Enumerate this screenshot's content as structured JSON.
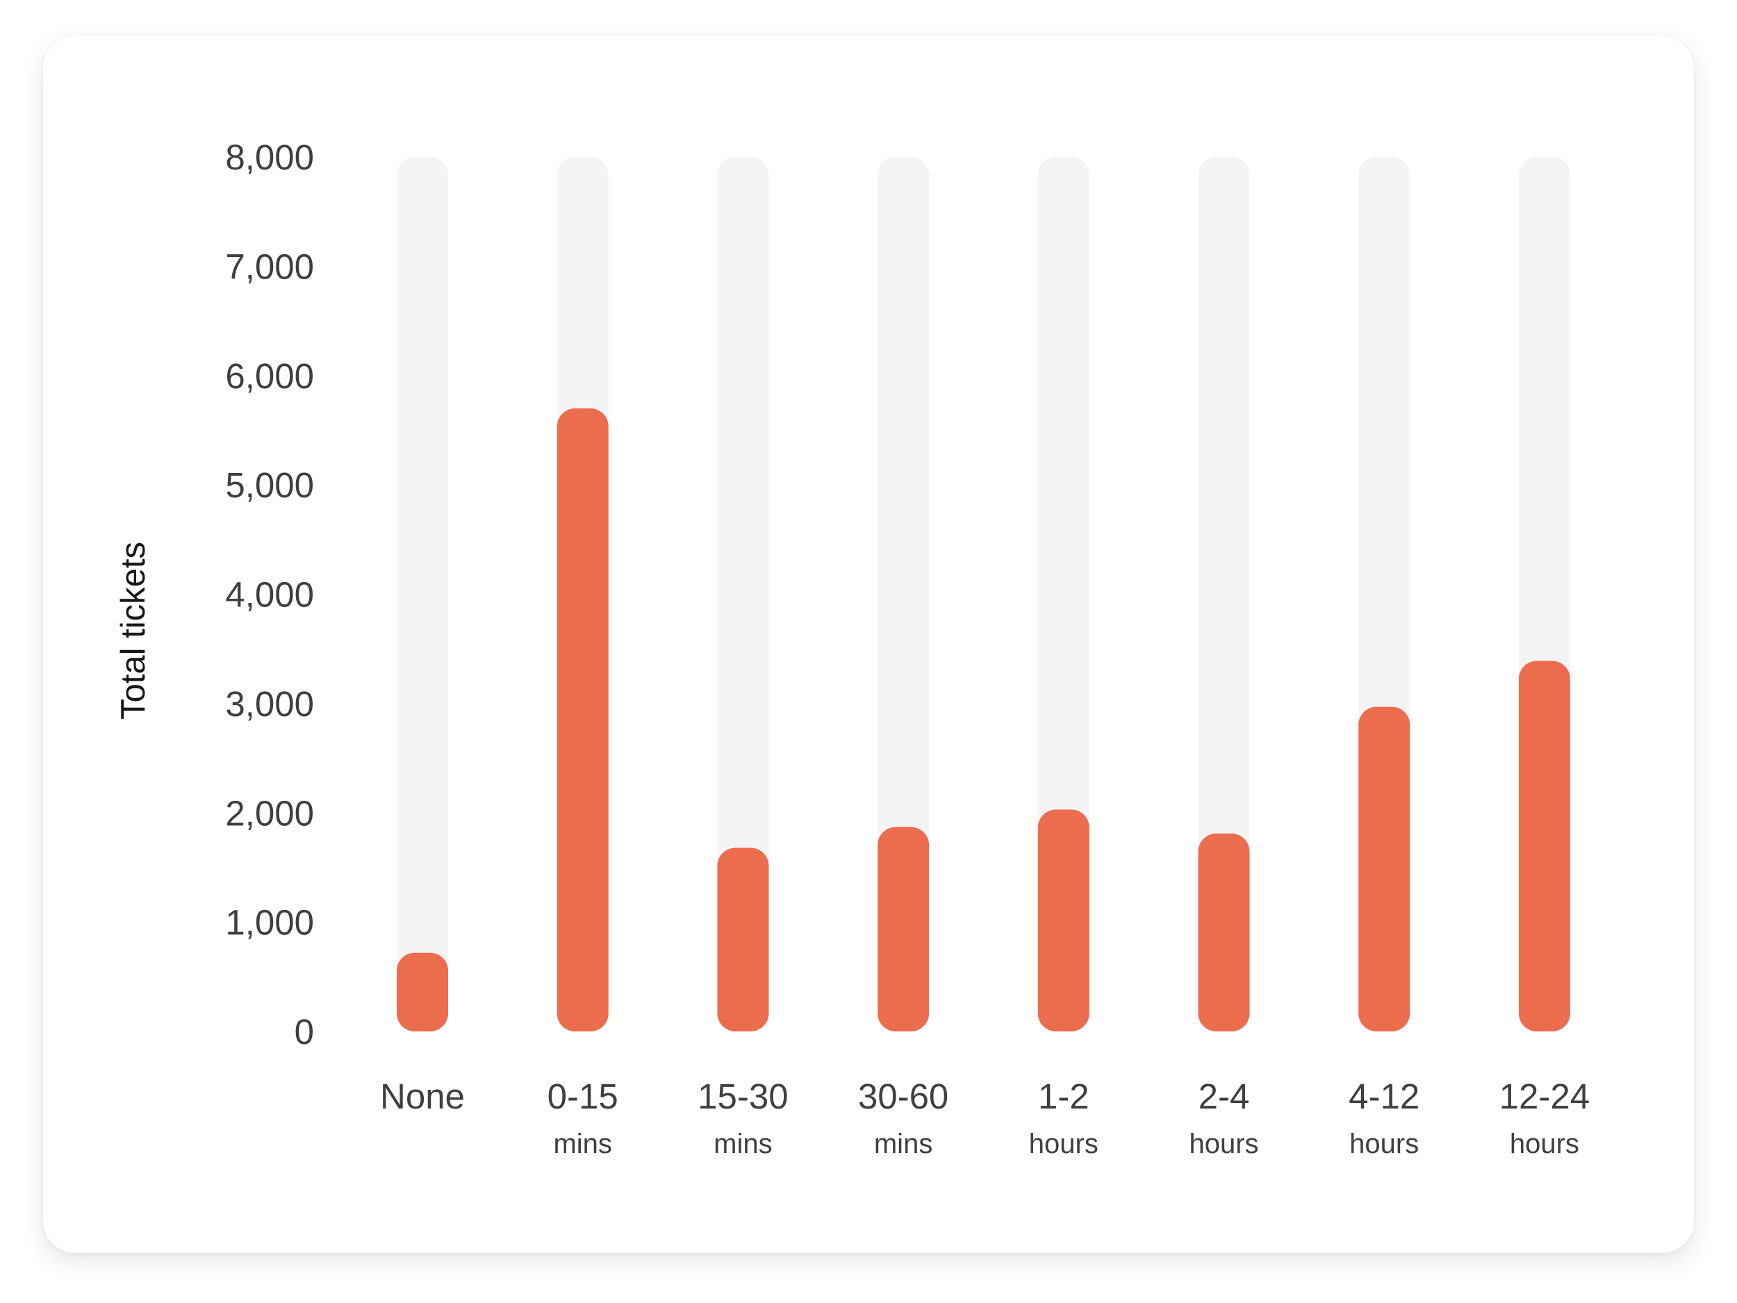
{
  "colors": {
    "bar": "#EC6C4E",
    "track": "#F4F4F4",
    "card": "#FFFFFF"
  },
  "chart_data": {
    "type": "bar",
    "title": "",
    "xlabel": "",
    "ylabel": "Total tickets",
    "ylim": [
      0,
      8000
    ],
    "yticks": [
      0,
      1000,
      2000,
      3000,
      4000,
      5000,
      6000,
      7000,
      8000
    ],
    "ytick_labels": [
      "0",
      "1,000",
      "2,000",
      "3,000",
      "4,000",
      "5,000",
      "6,000",
      "7,000",
      "8,000"
    ],
    "grid": false,
    "categories": [
      {
        "line1": "None",
        "line2": ""
      },
      {
        "line1": "0-15",
        "line2": "mins"
      },
      {
        "line1": "15-30",
        "line2": "mins"
      },
      {
        "line1": "30-60",
        "line2": "mins"
      },
      {
        "line1": "1-2",
        "line2": "hours"
      },
      {
        "line1": "2-4",
        "line2": "hours"
      },
      {
        "line1": "4-12",
        "line2": "hours"
      },
      {
        "line1": "12-24",
        "line2": "hours"
      }
    ],
    "values": [
      720,
      5700,
      1680,
      1870,
      2030,
      1810,
      2970,
      3390
    ]
  }
}
